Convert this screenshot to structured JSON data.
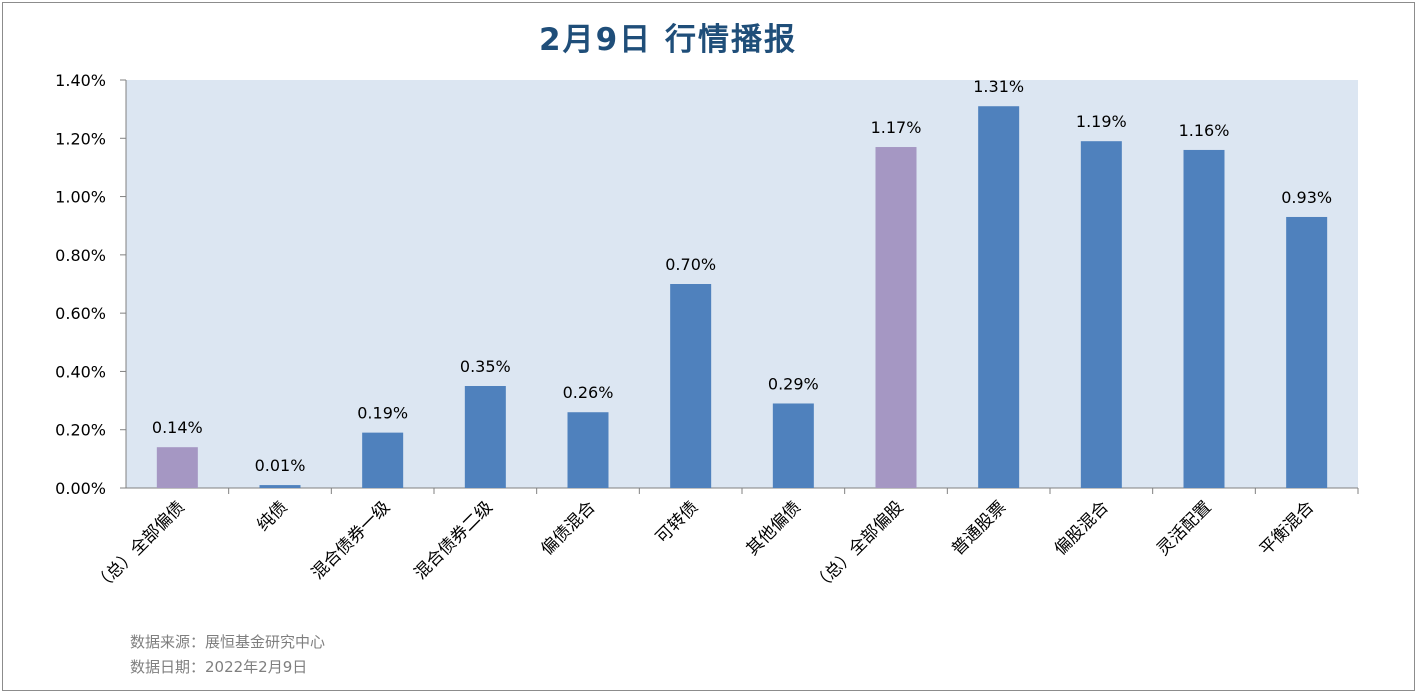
{
  "page": {
    "title": "2月9日  行情播报",
    "source_line": "数据来源：展恒基金研究中心",
    "date_line": "数据日期：2022年2月9日"
  },
  "chart_data": {
    "type": "bar",
    "title": "2月9日  行情播报",
    "categories": [
      "（总）全部偏债",
      "纯债",
      "混合债券一级",
      "混合债券二级",
      "偏债混合",
      "可转债",
      "其他偏债",
      "（总）全部偏股",
      "普通股票",
      "偏股混合",
      "灵活配置",
      "平衡混合"
    ],
    "values": [
      0.14,
      0.01,
      0.19,
      0.35,
      0.26,
      0.7,
      0.29,
      1.17,
      1.31,
      1.19,
      1.16,
      0.93
    ],
    "data_labels": [
      "0.14%",
      "0.01%",
      "0.19%",
      "0.35%",
      "0.26%",
      "0.70%",
      "0.29%",
      "1.17%",
      "1.31%",
      "1.19%",
      "1.16%",
      "0.93%"
    ],
    "highlighted_categories": [
      "（总）全部偏债",
      "（总）全部偏股"
    ],
    "ylim": [
      0,
      1.4
    ],
    "yticks": [
      "0.00%",
      "0.20%",
      "0.40%",
      "0.60%",
      "0.80%",
      "1.00%",
      "1.20%",
      "1.40%"
    ],
    "xlabel": "",
    "ylabel": "",
    "grid": false,
    "legend": "none",
    "colors": {
      "bar": "#4f81bd",
      "highlight": "#a597c3",
      "plot_background": "#dce6f2",
      "title": "#1f4e79"
    }
  }
}
